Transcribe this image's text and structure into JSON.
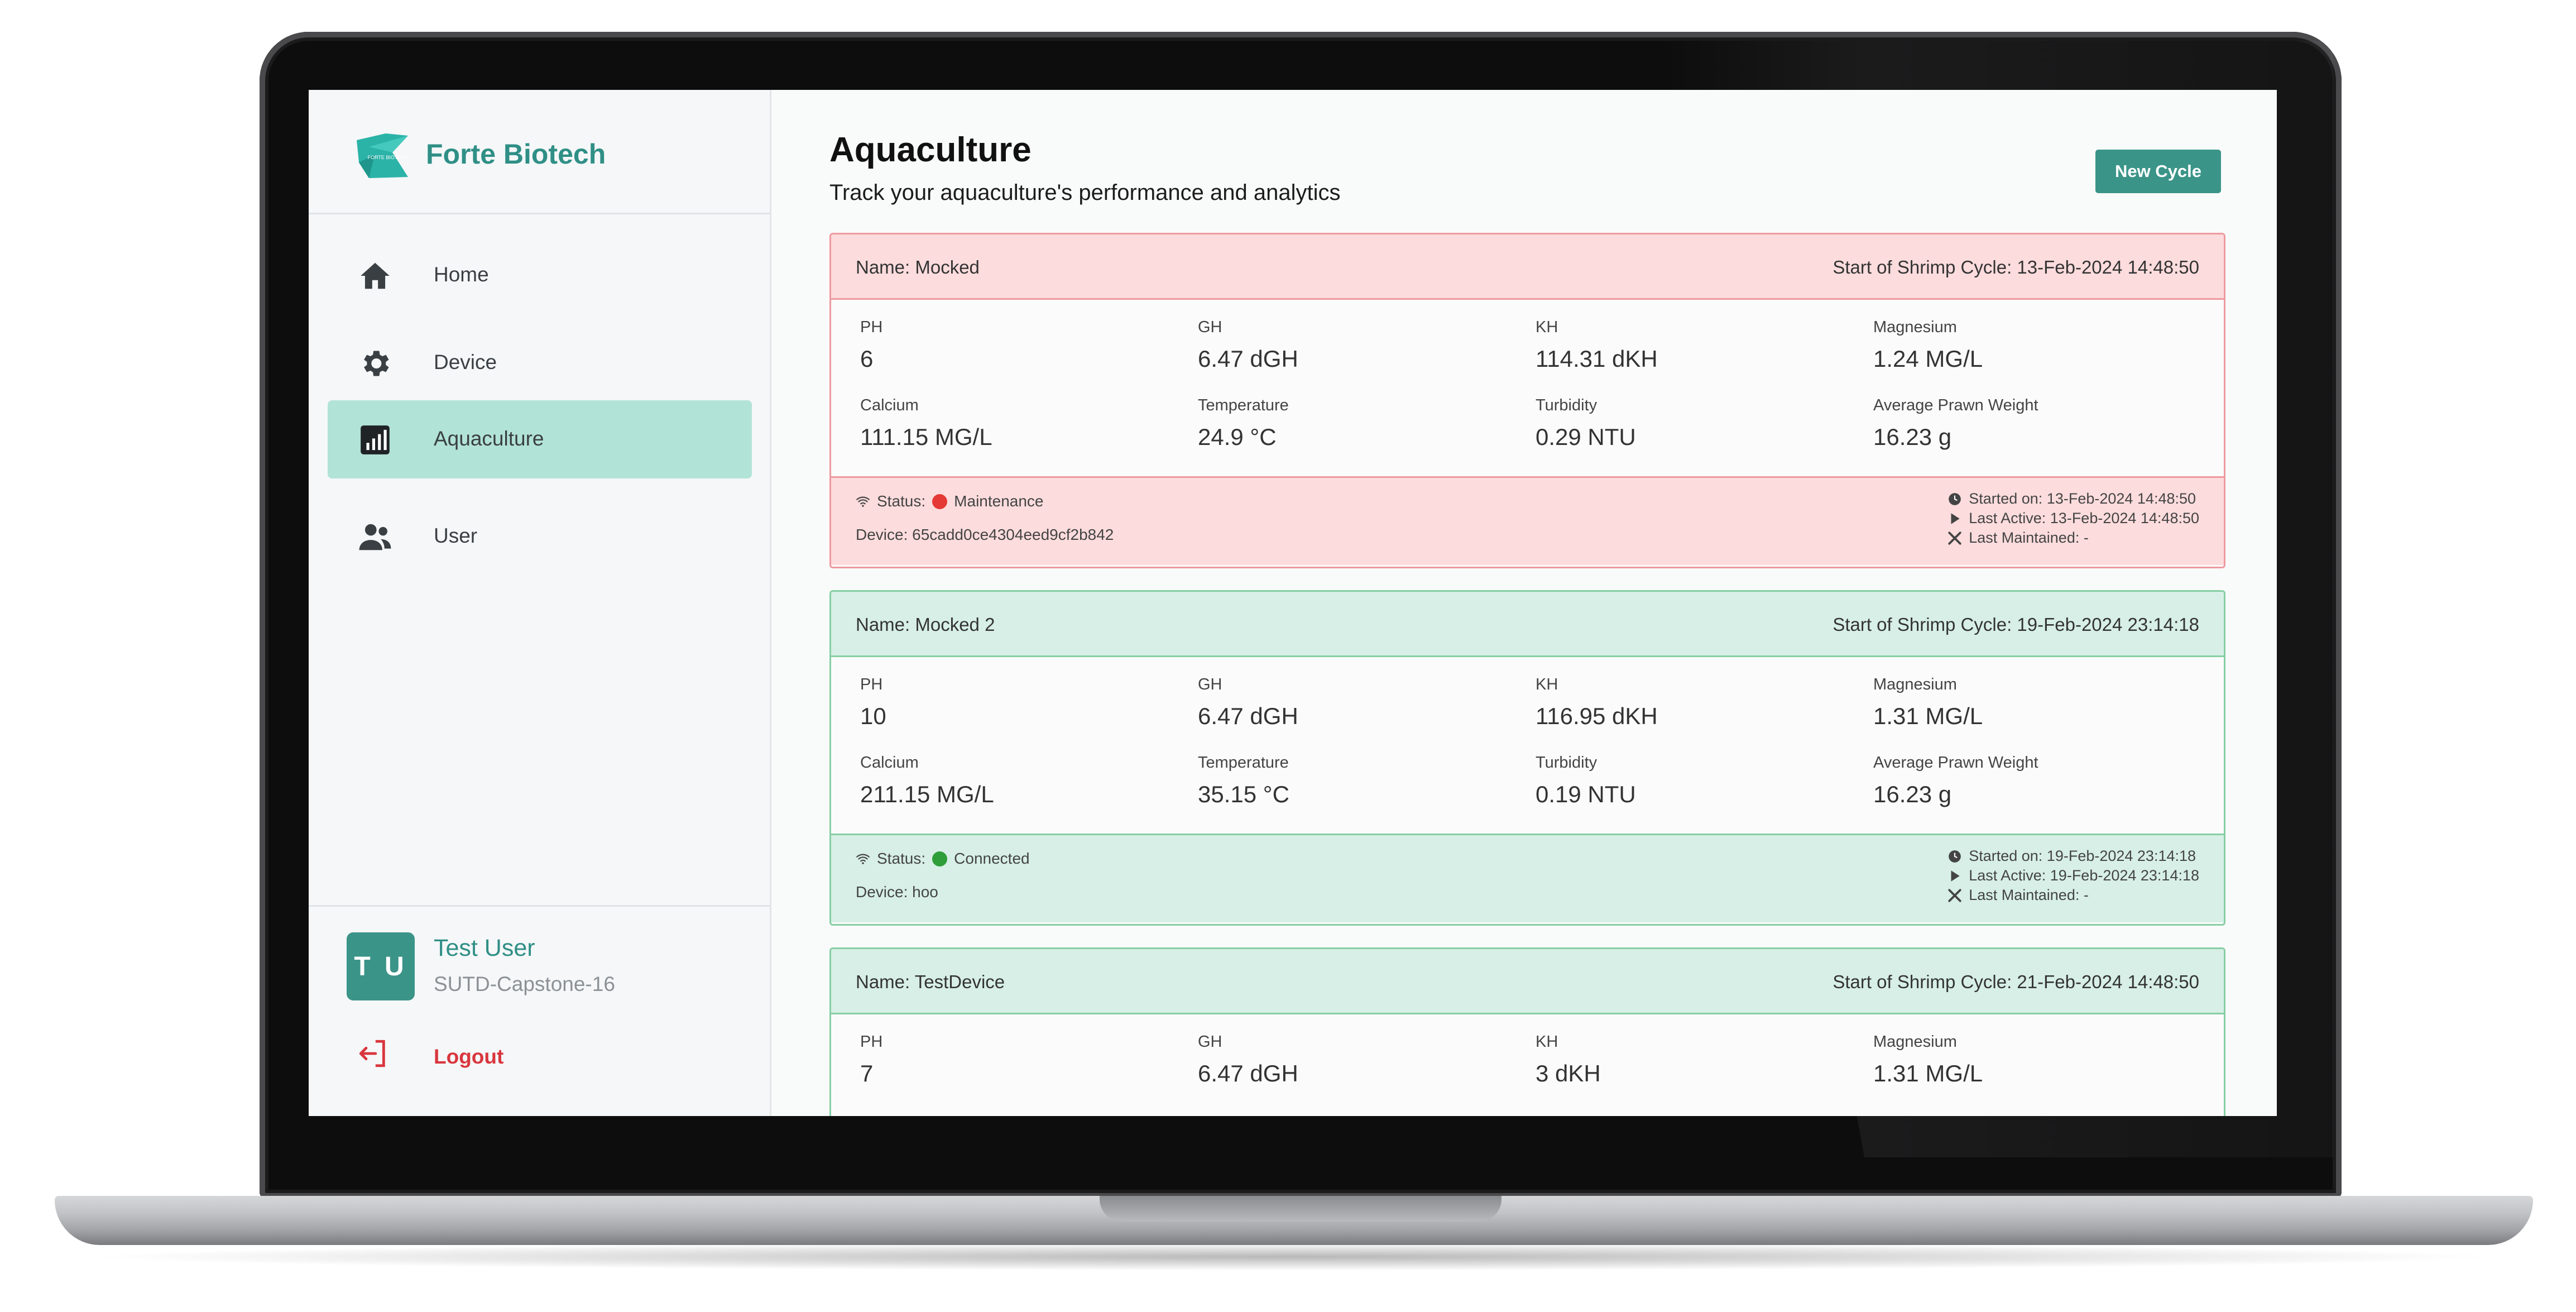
{
  "brand": {
    "name": "Forte Biotech",
    "logo_text": "FORTE BIOTECH",
    "icon": "forte-biotech-logo",
    "color": "#2f8f86"
  },
  "sidebar": {
    "items": [
      {
        "label": "Home",
        "icon": "home-icon",
        "active": false
      },
      {
        "label": "Device",
        "icon": "gear-icon",
        "active": false
      },
      {
        "label": "Aquaculture",
        "icon": "bar-chart-icon",
        "active": true
      },
      {
        "label": "User",
        "icon": "users-icon",
        "active": false
      }
    ],
    "active_color": "#b2e3d7"
  },
  "user": {
    "initials": "T U",
    "name": "Test User",
    "org": "SUTD-Capstone-16",
    "logout_label": "Logout"
  },
  "page": {
    "title": "Aquaculture",
    "subtitle": "Track your aquaculture's performance and analytics",
    "new_cycle_label": "New Cycle"
  },
  "cards": [
    {
      "theme": "red",
      "name": "Name: Mocked",
      "start": "Start of Shrimp Cycle: 13-Feb-2024 14:48:50",
      "metrics": [
        {
          "label": "PH",
          "value": "6"
        },
        {
          "label": "GH",
          "value": "6.47 dGH"
        },
        {
          "label": "KH",
          "value": "114.31 dKH"
        },
        {
          "label": "Magnesium",
          "value": "1.24 MG/L"
        },
        {
          "label": "Calcium",
          "value": "111.15 MG/L"
        },
        {
          "label": "Temperature",
          "value": "24.9 °C"
        },
        {
          "label": "Turbidity",
          "value": "0.29 NTU"
        },
        {
          "label": "Average Prawn Weight",
          "value": "16.23 g"
        }
      ],
      "status_label": "Status:",
      "status": "Maintenance",
      "status_color": "#e53935",
      "device": "Device: 65cadd0ce4304eed9cf2b842",
      "started_on": "Started on: 13-Feb-2024 14:48:50",
      "last_active": "Last Active: 13-Feb-2024 14:48:50",
      "last_maintained": "Last Maintained: -"
    },
    {
      "theme": "green",
      "name": "Name: Mocked 2",
      "start": "Start of Shrimp Cycle: 19-Feb-2024 23:14:18",
      "metrics": [
        {
          "label": "PH",
          "value": "10"
        },
        {
          "label": "GH",
          "value": "6.47 dGH"
        },
        {
          "label": "KH",
          "value": "116.95 dKH"
        },
        {
          "label": "Magnesium",
          "value": "1.31 MG/L"
        },
        {
          "label": "Calcium",
          "value": "211.15 MG/L"
        },
        {
          "label": "Temperature",
          "value": "35.15 °C"
        },
        {
          "label": "Turbidity",
          "value": "0.19 NTU"
        },
        {
          "label": "Average Prawn Weight",
          "value": "16.23 g"
        }
      ],
      "status_label": "Status:",
      "status": "Connected",
      "status_color": "#2e9e3a",
      "device": "Device: hoo",
      "started_on": "Started on: 19-Feb-2024 23:14:18",
      "last_active": "Last Active: 19-Feb-2024 23:14:18",
      "last_maintained": "Last Maintained: -"
    },
    {
      "theme": "green",
      "name": "Name: TestDevice",
      "start": "Start of Shrimp Cycle: 21-Feb-2024 14:48:50",
      "metrics": [
        {
          "label": "PH",
          "value": "7"
        },
        {
          "label": "GH",
          "value": "6.47 dGH"
        },
        {
          "label": "KH",
          "value": "3 dKH"
        },
        {
          "label": "Magnesium",
          "value": "1.31 MG/L"
        }
      ]
    }
  ]
}
